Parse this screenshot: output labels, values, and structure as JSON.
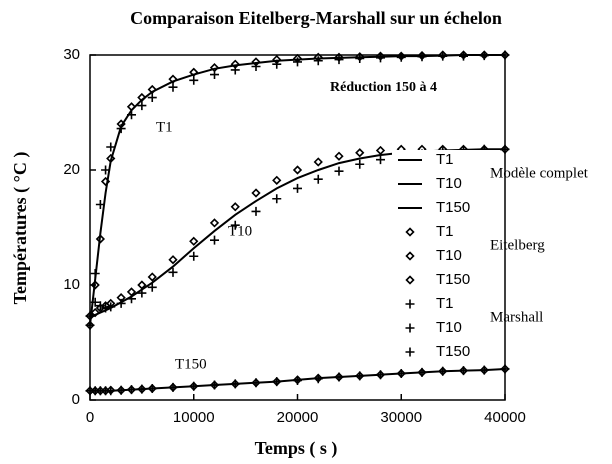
{
  "chart_data": {
    "type": "line",
    "title": "Comparaison Eitelberg-Marshall sur un échelon",
    "x_label": "Temps ( s )",
    "y_label": "Températures ( °C )",
    "annotations": [
      "Réduction 150 à 4",
      "T1",
      "T10",
      "T150"
    ],
    "xlim": [
      0,
      40000
    ],
    "xticks": [
      0,
      10000,
      20000,
      30000,
      40000
    ],
    "ylim": [
      0,
      30
    ],
    "yticks": [
      0,
      10,
      20,
      30
    ],
    "x": [
      0,
      500,
      1000,
      1500,
      2000,
      3000,
      4000,
      5000,
      6000,
      8000,
      10000,
      12000,
      14000,
      16000,
      18000,
      20000,
      22000,
      24000,
      26000,
      28000,
      30000,
      32000,
      34000,
      36000,
      38000,
      40000
    ],
    "groups": [
      {
        "label": "Modèle complet",
        "marker": "line",
        "series": [
          {
            "name": "T1",
            "color": "#000000",
            "values": [
              6.5,
              10.5,
              14.5,
              18,
              20.8,
              23.8,
              25.2,
              26.1,
              26.8,
              27.7,
              28.3,
              28.8,
              29.1,
              29.3,
              29.5,
              29.6,
              29.7,
              29.75,
              29.8,
              29.85,
              29.9,
              29.9,
              29.95,
              30,
              30,
              30
            ]
          },
          {
            "name": "T10",
            "color": "#000000",
            "values": [
              7.3,
              7.4,
              7.6,
              7.8,
              8,
              8.5,
              9,
              9.6,
              10.2,
              11.6,
              13.2,
              14.7,
              16.1,
              17.3,
              18.4,
              19.3,
              20,
              20.6,
              21,
              21.3,
              21.5,
              21.6,
              21.7,
              21.75,
              21.8,
              21.8
            ]
          },
          {
            "name": "T150",
            "color": "#000000",
            "values": [
              0.8,
              0.8,
              0.8,
              0.8,
              0.8,
              0.85,
              0.9,
              0.95,
              1,
              1.1,
              1.2,
              1.3,
              1.4,
              1.5,
              1.6,
              1.75,
              1.9,
              2,
              2.1,
              2.2,
              2.3,
              2.4,
              2.5,
              2.55,
              2.6,
              2.7
            ]
          }
        ]
      },
      {
        "label": "Eitelberg",
        "marker": "diamond",
        "series": [
          {
            "name": "T1",
            "color": "#000000",
            "values": [
              6.5,
              10,
              14,
              19,
              21,
              24,
              25.5,
              26.3,
              27,
              27.9,
              28.5,
              28.9,
              29.2,
              29.4,
              29.6,
              29.7,
              29.8,
              29.8,
              29.85,
              29.9,
              29.9,
              29.95,
              30,
              30,
              30,
              30
            ]
          },
          {
            "name": "T10",
            "color": "#000000",
            "values": [
              7.3,
              7.6,
              8,
              8.2,
              8.4,
              8.9,
              9.4,
              10,
              10.7,
              12.2,
              13.8,
              15.4,
              16.8,
              18,
              19.1,
              20,
              20.7,
              21.2,
              21.5,
              21.7,
              21.8,
              21.8,
              21.8,
              21.8,
              21.8,
              21.8
            ]
          },
          {
            "name": "T150",
            "color": "#000000",
            "values": [
              0.8,
              0.8,
              0.8,
              0.8,
              0.85,
              0.85,
              0.9,
              0.95,
              1,
              1.1,
              1.2,
              1.3,
              1.4,
              1.5,
              1.6,
              1.75,
              1.9,
              2,
              2.1,
              2.2,
              2.3,
              2.4,
              2.5,
              2.55,
              2.6,
              2.7
            ]
          }
        ]
      },
      {
        "label": "Marshall",
        "marker": "plus",
        "series": [
          {
            "name": "T1",
            "color": "#000000",
            "values": [
              6.5,
              11,
              17,
              20,
              22,
              23.6,
              24.8,
              25.6,
              26.3,
              27.2,
              27.8,
              28.3,
              28.7,
              29,
              29.2,
              29.4,
              29.5,
              29.6,
              29.7,
              29.75,
              29.8,
              29.85,
              29.9,
              29.9,
              29.95,
              30
            ]
          },
          {
            "name": "T10",
            "color": "#000000",
            "values": [
              7.3,
              8.5,
              8.2,
              8,
              8.1,
              8.4,
              8.8,
              9.3,
              9.8,
              11.1,
              12.5,
              13.9,
              15.2,
              16.4,
              17.5,
              18.4,
              19.2,
              19.9,
              20.5,
              20.9,
              21.2,
              21.4,
              21.6,
              21.7,
              21.8,
              21.8
            ]
          },
          {
            "name": "T150",
            "color": "#000000",
            "values": [
              0.8,
              0.8,
              0.8,
              0.8,
              0.8,
              0.85,
              0.9,
              0.95,
              1,
              1.1,
              1.2,
              1.3,
              1.4,
              1.5,
              1.6,
              1.7,
              1.85,
              2,
              2.1,
              2.2,
              2.3,
              2.4,
              2.5,
              2.55,
              2.6,
              2.7
            ]
          }
        ]
      }
    ]
  }
}
